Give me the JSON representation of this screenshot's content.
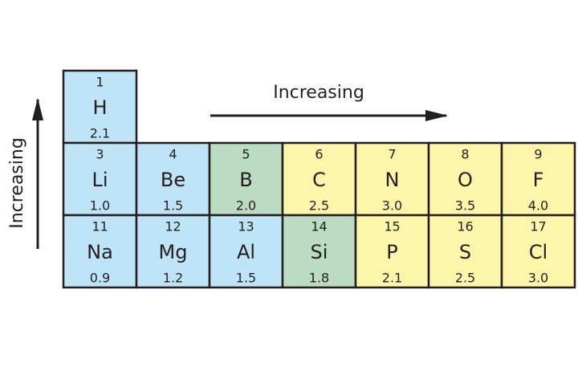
{
  "arrows": {
    "horizontal_label": "Increasing",
    "vertical_label": "Increasing"
  },
  "cells": [
    {
      "number": 1,
      "symbol": "H",
      "value": "2.1"
    },
    {
      "number": 3,
      "symbol": "Li",
      "value": "1.0"
    },
    {
      "number": 4,
      "symbol": "Be",
      "value": "1.5"
    },
    {
      "number": 5,
      "symbol": "B",
      "value": "2.0"
    },
    {
      "number": 6,
      "symbol": "C",
      "value": "2.5"
    },
    {
      "number": 7,
      "symbol": "N",
      "value": "3.0"
    },
    {
      "number": 8,
      "symbol": "O",
      "value": "3.5"
    },
    {
      "number": 9,
      "symbol": "F",
      "value": "4.0"
    },
    {
      "number": 11,
      "symbol": "Na",
      "value": "0.9"
    },
    {
      "number": 12,
      "symbol": "Mg",
      "value": "1.2"
    },
    {
      "number": 13,
      "symbol": "Al",
      "value": "1.5"
    },
    {
      "number": 14,
      "symbol": "Si",
      "value": "1.8"
    },
    {
      "number": 15,
      "symbol": "P",
      "value": "2.1"
    },
    {
      "number": 16,
      "symbol": "S",
      "value": "2.5"
    },
    {
      "number": 17,
      "symbol": "Cl",
      "value": "3.0"
    }
  ]
}
